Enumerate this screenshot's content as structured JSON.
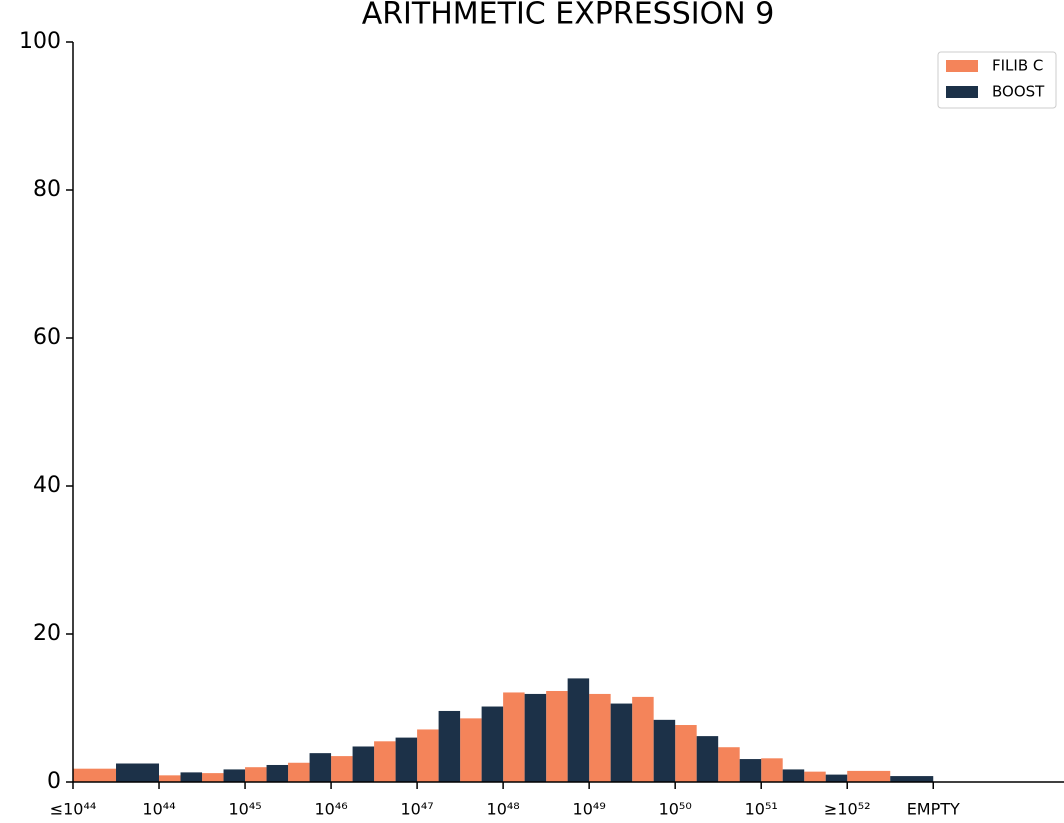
{
  "chart_data": {
    "type": "histogram",
    "title": "ARITHMETIC EXPRESSION 9",
    "bins": [
      0,
      1,
      1.5,
      2,
      2.5,
      3,
      3.5,
      4,
      4.5,
      5,
      5.5,
      6,
      6.5,
      7,
      7.5,
      8,
      8.5,
      9,
      10
    ],
    "series": [
      {
        "name": "FILIB C",
        "color": "#f4845a",
        "values": [
          1.8,
          0.9,
          1.2,
          2.0,
          2.6,
          3.5,
          5.5,
          7.1,
          8.6,
          12.1,
          12.3,
          11.9,
          11.5,
          7.7,
          4.7,
          3.2,
          1.4,
          1.5
        ]
      },
      {
        "name": "BOOST",
        "color": "#1c3148",
        "values": [
          2.5,
          1.3,
          1.7,
          2.3,
          3.9,
          4.8,
          6.0,
          9.6,
          10.2,
          11.9,
          14.0,
          10.6,
          8.4,
          6.2,
          3.1,
          1.7,
          1.0,
          0.8
        ]
      }
    ],
    "xlim": [
      0,
      11.52
    ],
    "xticks": [
      {
        "value": 0,
        "label": "≤10⁴⁴"
      },
      {
        "value": 1,
        "label": "10⁴⁴"
      },
      {
        "value": 2,
        "label": "10⁴⁵"
      },
      {
        "value": 3,
        "label": "10⁴⁶"
      },
      {
        "value": 4,
        "label": "10⁴⁷"
      },
      {
        "value": 5,
        "label": "10⁴⁸"
      },
      {
        "value": 6,
        "label": "10⁴⁹"
      },
      {
        "value": 7,
        "label": "10⁵⁰"
      },
      {
        "value": 8,
        "label": "10⁵¹"
      },
      {
        "value": 9,
        "label": "≥10⁵²"
      },
      {
        "value": 10,
        "label": "EMPTY"
      }
    ],
    "ylim": [
      0,
      100
    ],
    "yticks": [
      0,
      20,
      40,
      60,
      80,
      100
    ],
    "legend": "upper right",
    "grid": false
  }
}
